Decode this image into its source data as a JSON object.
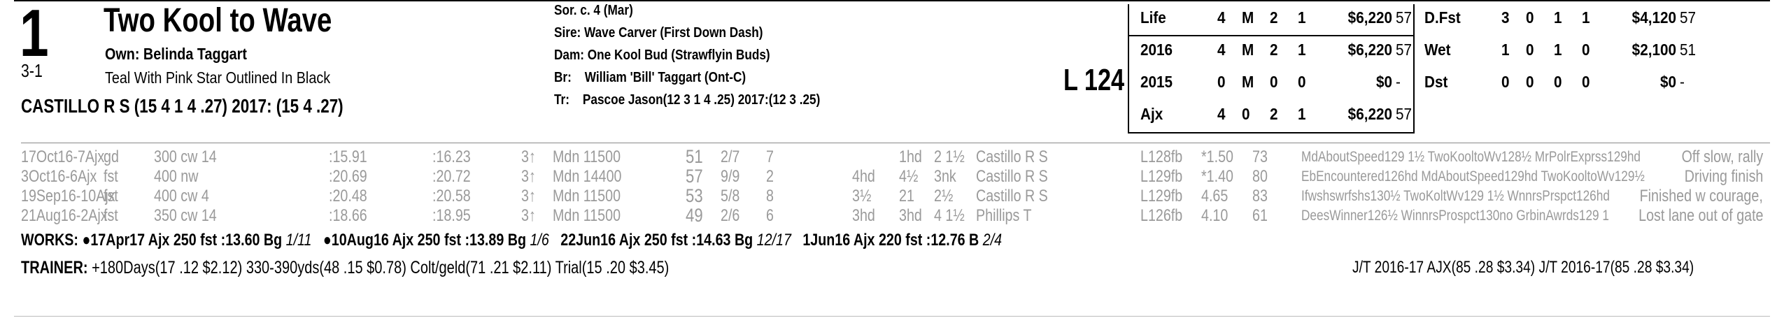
{
  "header": {
    "post": "1",
    "odds": "3-1",
    "horse_name": "Two Kool to Wave",
    "owner": "Own: Belinda Taggart",
    "silks": "Teal With Pink Star Outlined In Black",
    "jockey": "CASTILLO R S (15 4 1 4 .27) 2017: (15 4 .27)",
    "sor": "Sor. c. 4 (Mar)",
    "sire": "Sire: Wave Carver (First Down Dash)",
    "dam": "Dam: One Kool Bud (Strawflyin Buds)",
    "breeder_label": "Br:",
    "breeder": "William 'Bill' Taggart (Ont-C)",
    "trainer_label": "Tr:",
    "trainer": "Pascoe Jason(12 3 1 4 .25) 2017:(12 3 .25)",
    "weight": "L 124"
  },
  "records_left": [
    {
      "label": "Life",
      "st": "4",
      "w": "M",
      "p": "2",
      "s": "1",
      "earn": "$6,220",
      "spd": "57"
    },
    {
      "label": "2016",
      "st": "4",
      "w": "M",
      "p": "2",
      "s": "1",
      "earn": "$6,220",
      "spd": "57"
    },
    {
      "label": "2015",
      "st": "0",
      "w": "M",
      "p": "0",
      "s": "0",
      "earn": "$0",
      "spd": "-"
    },
    {
      "label": "Ajx",
      "st": "4",
      "w": "0",
      "p": "2",
      "s": "1",
      "earn": "$6,220",
      "spd": "57"
    }
  ],
  "records_right": [
    {
      "label": "D.Fst",
      "st": "3",
      "w": "0",
      "p": "1",
      "s": "1",
      "earn": "$4,120",
      "spd": "57"
    },
    {
      "label": "Wet",
      "st": "1",
      "w": "0",
      "p": "1",
      "s": "0",
      "earn": "$2,100",
      "spd": "51"
    },
    {
      "label": "Dst",
      "st": "0",
      "w": "0",
      "p": "0",
      "s": "0",
      "earn": "$0",
      "spd": "-"
    }
  ],
  "past_performances": [
    {
      "date": "17Oct16-7Ajx",
      "cond": "gd",
      "dist": "300 cw 14",
      "t1": ":15.91",
      "t2": ":16.23",
      "age": "3↑",
      "race": "Mdn 11500",
      "sr": "51",
      "pp": "2/7",
      "st": "7",
      "c1": "",
      "c2": "1hd",
      "fin": "2 1½",
      "jockey": "Castillo R S",
      "wt": "L128fb",
      "odds": "*1.50",
      "spd": "73",
      "comp": "MdAboutSpeed129 1½ TwoKooltoWv128½ MrPolrExprss129hd",
      "comment": "Off slow, rally"
    },
    {
      "date": "3Oct16-6Ajx",
      "cond": "fst",
      "dist": "400 nw",
      "t1": ":20.69",
      "t2": ":20.72",
      "age": "3↑",
      "race": "Mdn 14400",
      "sr": "57",
      "pp": "9/9",
      "st": "2",
      "c1": "4hd",
      "c2": "4½",
      "fin": "3nk",
      "jockey": "Castillo R S",
      "wt": "L129fb",
      "odds": "*1.40",
      "spd": "80",
      "comp": "EbEncountered126hd MdAboutSpeed129hd TwoKooltoWv129½",
      "comment": "Driving finish"
    },
    {
      "date": "19Sep16-10Ajx",
      "cond": "fst",
      "dist": "400 cw 4",
      "t1": ":20.48",
      "t2": ":20.58",
      "age": "3↑",
      "race": "Mdn 11500",
      "sr": "53",
      "pp": "5/8",
      "st": "8",
      "c1": "3½",
      "c2": "21",
      "fin": "2½",
      "jockey": "Castillo R S",
      "wt": "L129fb",
      "odds": "4.65",
      "spd": "83",
      "comp": "Ifwshswrfshs130½ TwoKoltWv129 1½ WnnrsPrspct126hd",
      "comment": "Finished w courage,"
    },
    {
      "date": "21Aug16-2Ajx",
      "cond": "fst",
      "dist": "350 cw 14",
      "t1": ":18.66",
      "t2": ":18.95",
      "age": "3↑",
      "race": "Mdn 11500",
      "sr": "49",
      "pp": "2/6",
      "st": "6",
      "c1": "3hd",
      "c2": "3hd",
      "fin": "4 1½",
      "jockey": "Phillips T",
      "wt": "L126fb",
      "odds": "4.10",
      "spd": "61",
      "comp": "DeesWinner126½ WinnrsProspct130no GrbinAwrds129 1",
      "comment": "Lost lane out of gate"
    }
  ],
  "works": "WORKS:  ●17Apr17 Ajx 250 fst :13.60 Bg",
  "works_rank1": "1/11",
  "works2": "●10Aug16 Ajx 250 fst :13.89 Bg",
  "works_rank2": "1/6",
  "works3": "22Jun16 Ajx 250 fst :14.63 Bg",
  "works_rank3": "12/17",
  "works4": "1Jun16 Ajx 220 fst :12.76 B",
  "works_rank4": "2/4",
  "trainer_stats_label": "TRAINER:",
  "trainer_stats": "+180Days(17 .12 $2.12) 330-390yds(48 .15 $0.78) Colt/geld(71 .21 $2.11) Trial(15 .20 $3.45)",
  "jt_stats": "J/T 2016-17 AJX(85 .28 $3.34)  J/T 2016-17(85 .28 $3.34)"
}
